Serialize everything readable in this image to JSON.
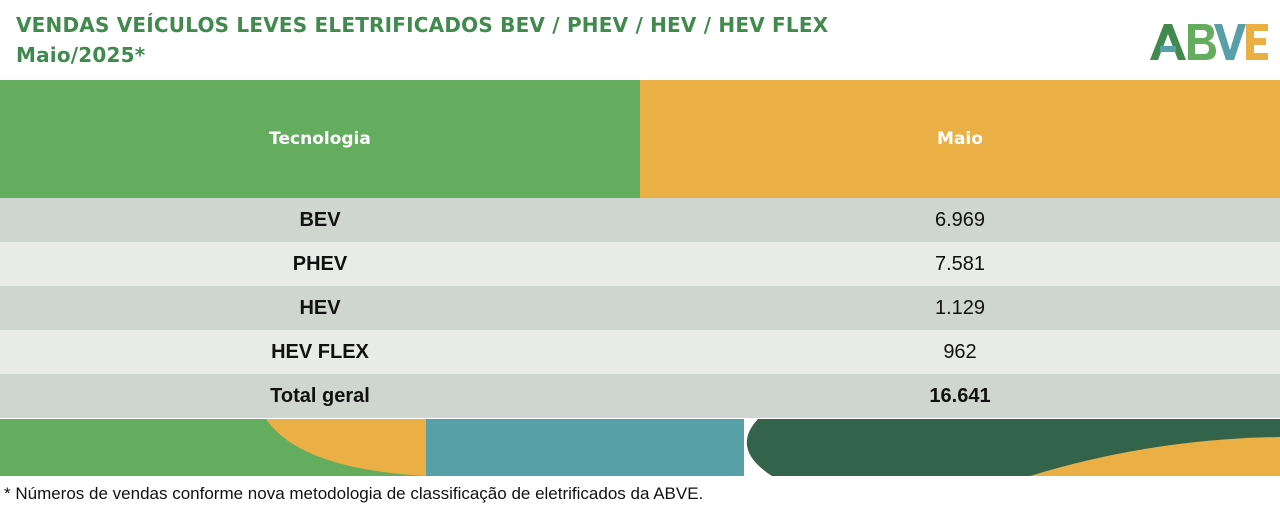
{
  "title": {
    "line1": "VENDAS VEÍCULOS LEVES ELETRIFICADOS BEV / PHEV / HEV / HEV FLEX",
    "line2": "Maio/2025*"
  },
  "logo": {
    "text": "ABVE"
  },
  "table": {
    "headers": {
      "technology": "Tecnologia",
      "month": "Maio"
    },
    "rows": [
      {
        "label": "BEV",
        "value": "6.969"
      },
      {
        "label": "PHEV",
        "value": "7.581"
      },
      {
        "label": "HEV",
        "value": "1.129"
      },
      {
        "label": "HEV FLEX",
        "value": "962"
      }
    ],
    "total": {
      "label": "Total geral",
      "value": "16.641"
    }
  },
  "footnote": "* Números de vendas conforme nova metodologia de classificação de eletrificados da ABVE.",
  "colors": {
    "title_green": "#3f8a4c",
    "header_green": "#64ac5e",
    "header_orange": "#ebb045",
    "row_dark": "#ced6cf",
    "row_light": "#e9ebe8",
    "teal": "#58a0a8",
    "dark_green": "#33634a"
  }
}
